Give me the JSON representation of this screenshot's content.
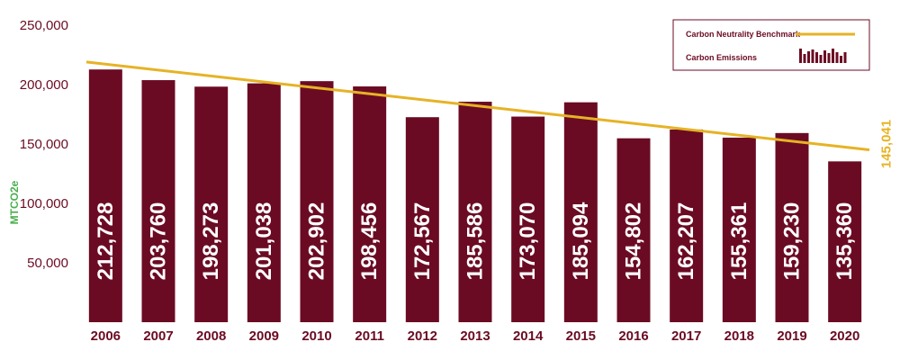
{
  "chart_data": {
    "type": "bar",
    "categories": [
      "2006",
      "2007",
      "2008",
      "2009",
      "2010",
      "2011",
      "2012",
      "2013",
      "2014",
      "2015",
      "2016",
      "2017",
      "2018",
      "2019",
      "2020"
    ],
    "series": [
      {
        "name": "Carbon Emissions",
        "values": [
          212728,
          203760,
          198273,
          201038,
          202902,
          198456,
          172567,
          185586,
          173070,
          185094,
          154802,
          162207,
          155361,
          159230,
          135360
        ],
        "labels": [
          "212,728",
          "203,760",
          "198,273",
          "201,038",
          "202,902",
          "198,456",
          "172,567",
          "185,586",
          "173,070",
          "185,094",
          "154,802",
          "162,207",
          "155,361",
          "159,230",
          "135,360"
        ]
      },
      {
        "name": "Carbon Neutrality Benchmark",
        "type": "line",
        "start_value": 219000,
        "end_value": 145041,
        "end_label": "145,041"
      }
    ],
    "ylabel": "MTCO2e",
    "ylim": [
      0,
      250000
    ],
    "yticks": [
      50000,
      100000,
      150000,
      200000,
      250000
    ],
    "ytick_labels": [
      "50,000",
      "100,000",
      "150,000",
      "200,000",
      "250,000"
    ],
    "legend": "top-right",
    "grid": false
  },
  "colors": {
    "bar": "#6b0b23",
    "benchmark": "#e6b325",
    "ylabel": "#4caf50"
  }
}
